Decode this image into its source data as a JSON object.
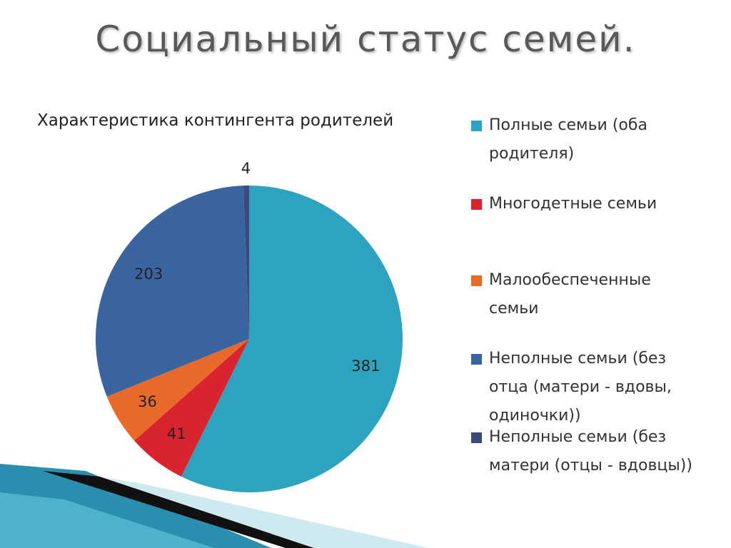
{
  "heading": "Социальный статус семей.",
  "chart_data": {
    "type": "pie",
    "title": "Характеристика контингента родителей",
    "categories": [
      "Полные семьи (оба родителя)",
      "Многодетные семьи",
      "Малообеспеченные семьи",
      "Неполные семьи (без отца (матери - вдовы, одиночки))",
      "Неполные семьи (без матери (отцы - вдовцы))"
    ],
    "values": [
      381,
      41,
      36,
      203,
      4
    ],
    "colors": [
      "#2ea3bf",
      "#d9232e",
      "#e8692a",
      "#3a64a0",
      "#3b4a7a"
    ],
    "legend": "right"
  }
}
